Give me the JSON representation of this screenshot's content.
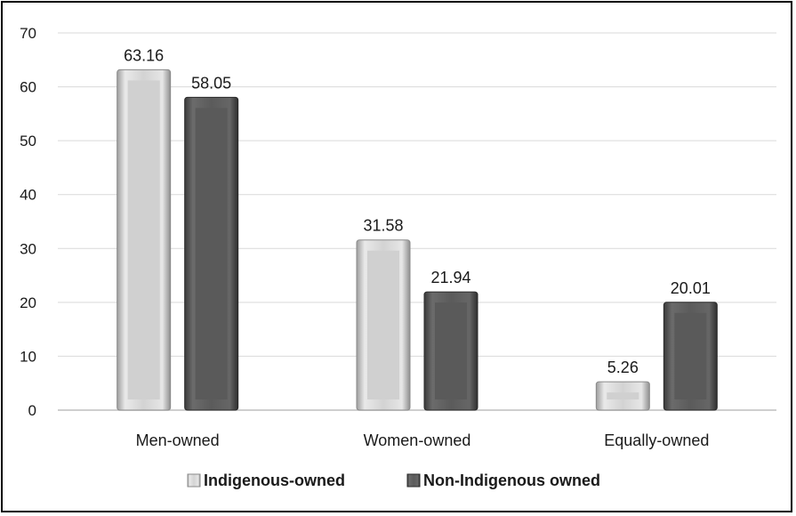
{
  "chart_data": {
    "type": "bar",
    "categories": [
      "Men-owned",
      "Women-owned",
      "Equally-owned"
    ],
    "series": [
      {
        "name": "Indigenous-owned",
        "values": [
          63.16,
          31.58,
          5.26
        ],
        "color": "#cfcfcf"
      },
      {
        "name": "Non-Indigenous owned",
        "values": [
          58.05,
          21.94,
          20.01
        ],
        "color": "#5e5e5e"
      }
    ],
    "data_labels": [
      [
        "63.16",
        "31.58",
        "5.26"
      ],
      [
        "58.05",
        "21.94",
        "20.01"
      ]
    ],
    "ylim": [
      0,
      70
    ],
    "yticks": [
      0,
      10,
      20,
      30,
      40,
      50,
      60,
      70
    ],
    "grid": true,
    "legend": "bottom"
  }
}
